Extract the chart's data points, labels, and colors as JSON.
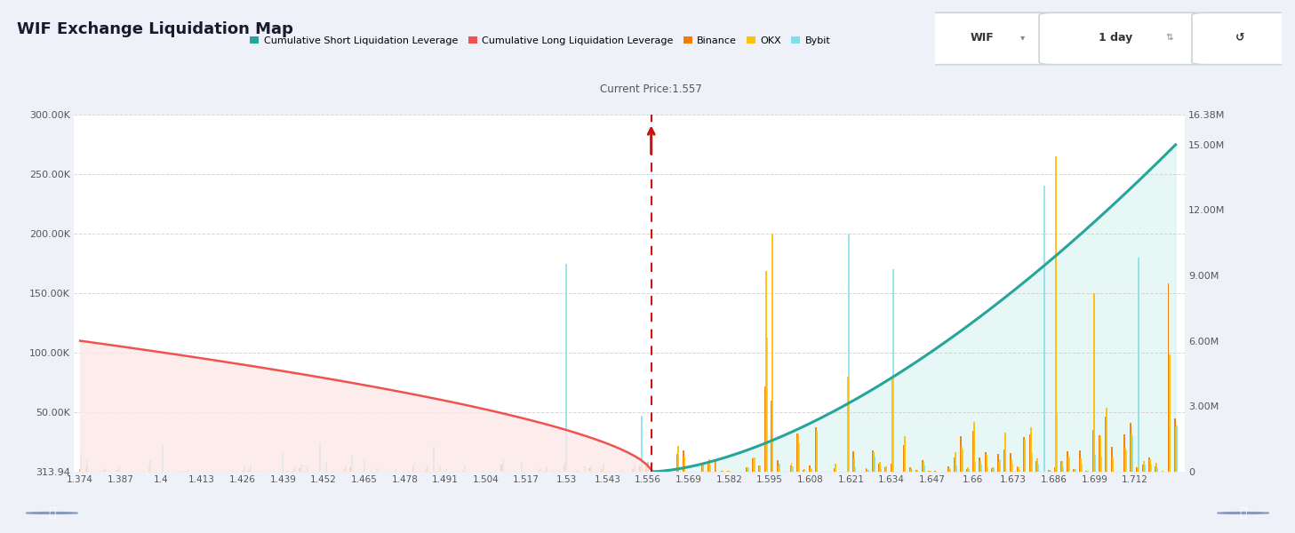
{
  "title": "WIF Exchange Liquidation Map",
  "current_price": 1.557,
  "current_price_label": "Current Price:1.557",
  "x_min": 1.374,
  "x_max": 1.725,
  "y_left_max": 300000,
  "y_right_max": 16380000,
  "x_ticks": [
    1.374,
    1.387,
    1.4,
    1.413,
    1.426,
    1.439,
    1.452,
    1.465,
    1.478,
    1.491,
    1.504,
    1.517,
    1.53,
    1.543,
    1.556,
    1.569,
    1.582,
    1.595,
    1.608,
    1.621,
    1.634,
    1.647,
    1.66,
    1.673,
    1.686,
    1.699,
    1.712
  ],
  "y_left_tick_vals": [
    313.94,
    50000,
    100000,
    150000,
    200000,
    250000,
    300000
  ],
  "y_left_tick_labels": [
    "313.94",
    "50.00K",
    "100.00K",
    "150.00K",
    "200.00K",
    "250.00K",
    "300.00K"
  ],
  "y_right_tick_vals": [
    0,
    3000000,
    6000000,
    9000000,
    12000000,
    15000000,
    16380000
  ],
  "y_right_tick_labels": [
    "0",
    "3.00M",
    "6.00M",
    "9.00M",
    "12.00M",
    "15.00M",
    "16.38M"
  ],
  "bg_color": "#eef2f8",
  "plot_bg": "#ffffff",
  "short_liq_color": "#26a69a",
  "long_liq_color": "#ef5350",
  "long_fill_color": "#fce8e8",
  "short_fill_color": "#d0f0ee",
  "binance_color": "#f57c00",
  "okx_color": "#ffc107",
  "bybit_color": "#80deea",
  "current_price_color": "#cc1111",
  "grid_color": "#cccccc",
  "legend_labels": [
    "Cumulative Short Liquidation Leverage",
    "Cumulative Long Liquidation Leverage",
    "Binance",
    "OKX",
    "Bybit"
  ],
  "legend_colors": [
    "#26a69a",
    "#ef5350",
    "#f57c00",
    "#ffc107",
    "#80deea"
  ]
}
